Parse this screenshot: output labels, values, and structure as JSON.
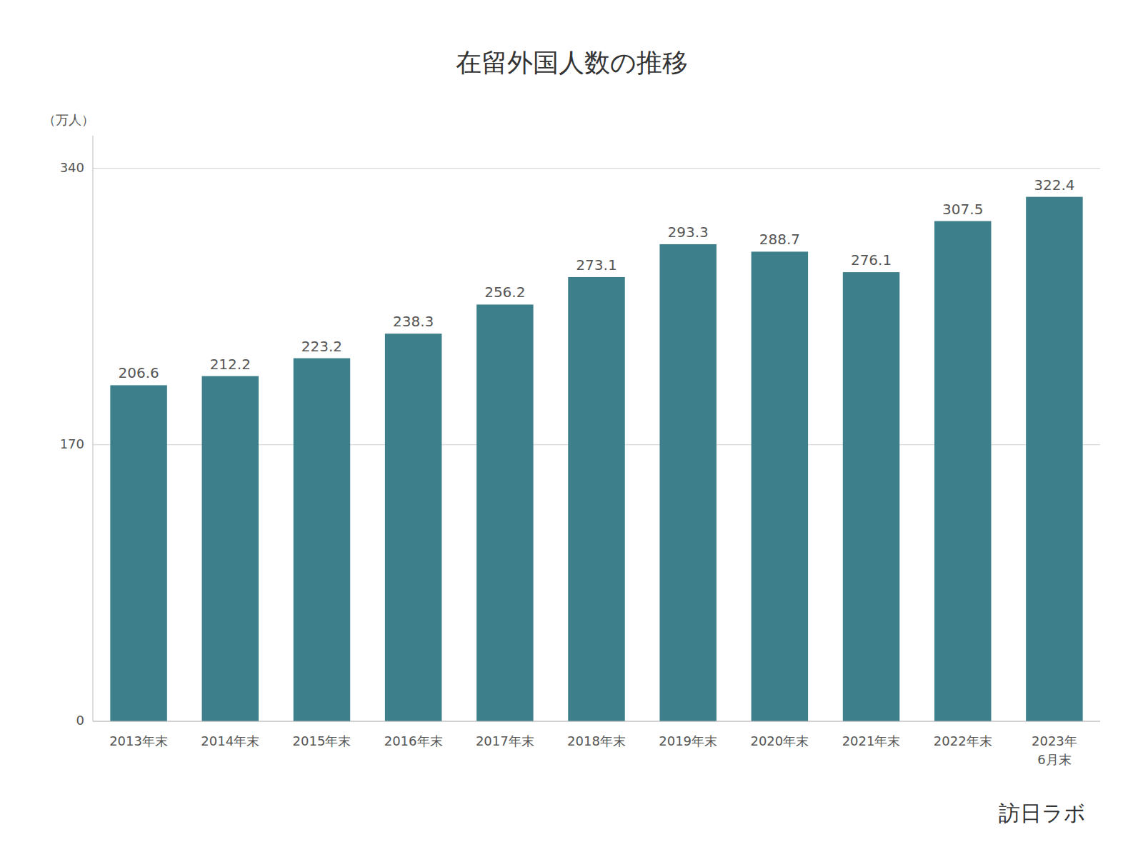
{
  "chart_data": {
    "type": "bar",
    "title": "在留外国人数の推移",
    "ylabel": "（万人）",
    "annotation": "訪日ラボ",
    "categories": [
      "2013年末",
      "2014年末",
      "2015年末",
      "2016年末",
      "2017年末",
      "2018年末",
      "2019年末",
      "2020年末",
      "2021年末",
      "2022年末",
      "2023年\n6月末"
    ],
    "values": [
      206.6,
      212.2,
      223.2,
      238.3,
      256.2,
      273.1,
      293.3,
      288.7,
      276.1,
      307.5,
      322.4
    ],
    "color": "#3d7f8a",
    "ylim": [
      0,
      360
    ],
    "yticks": [
      0,
      170,
      340
    ],
    "grid": true,
    "data_labels": true
  }
}
